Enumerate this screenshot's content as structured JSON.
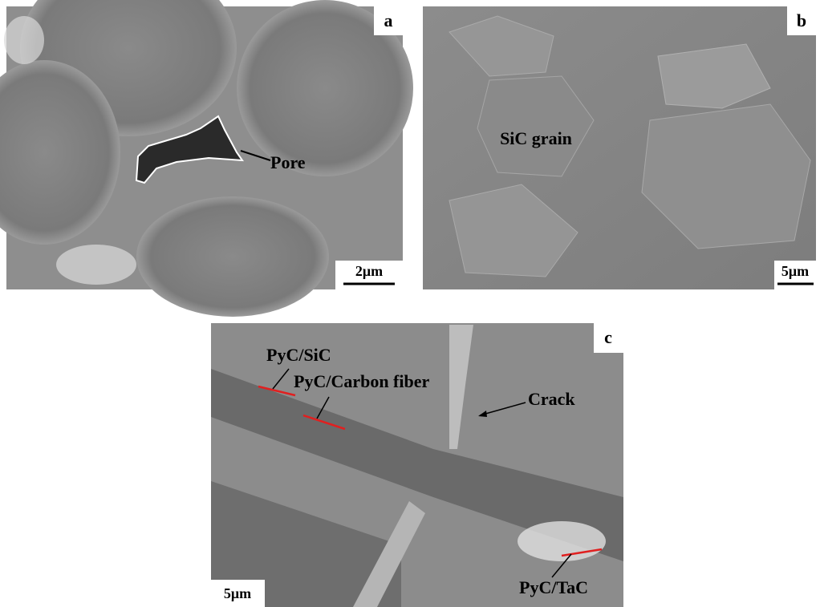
{
  "panels": [
    {
      "label": "a",
      "scale_bar": "2μm",
      "annotations": [
        "Pore"
      ]
    },
    {
      "label": "b",
      "scale_bar": "5μm",
      "annotations": [
        "SiC grain"
      ]
    },
    {
      "label": "c",
      "scale_bar": "5μm",
      "annotations": [
        "PyC/SiC",
        "PyC/Carbon fiber",
        "Crack",
        "PyC/TaC"
      ]
    }
  ]
}
